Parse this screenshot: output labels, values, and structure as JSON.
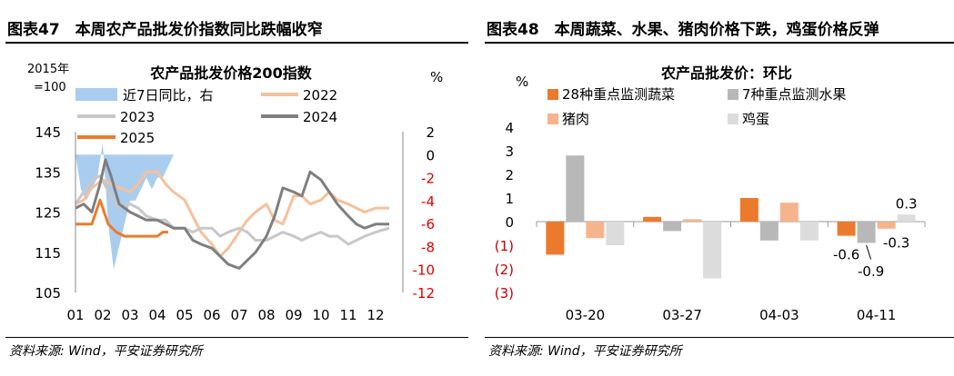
{
  "left": {
    "header": "图表47　本周农产品批发价指数同比跌幅收窄",
    "footer": "资料来源: Wind，平安证券研究所",
    "chart_data": {
      "type": "line",
      "title": "农产品批发价格200指数",
      "ylabel_left": "2015年=100",
      "ylabel_left_line1": "2015年",
      "ylabel_left_line2": "=100",
      "ylabel_right": "%",
      "x_ticks": [
        "01",
        "02",
        "03",
        "04",
        "05",
        "06",
        "07",
        "08",
        "09",
        "10",
        "11",
        "12"
      ],
      "y_left_ticks": [
        "105",
        "115",
        "125",
        "135",
        "145"
      ],
      "y_left_range": [
        105,
        145
      ],
      "y_right_ticks": [
        "2",
        "0",
        "-2",
        "-4",
        "-6",
        "-8",
        "-10",
        "-12"
      ],
      "y_right_range": [
        -12,
        2
      ],
      "legend": {
        "area": "近7日同比，右",
        "s2022": "2022",
        "s2023": "2023",
        "s2024": "2024",
        "s2025": "2025"
      },
      "colors": {
        "area": "#a9cdef",
        "s2022": "#f6c09a",
        "s2023": "#c8c8c8",
        "s2024": "#7f7f7f",
        "s2025": "#ec7a2c",
        "right_ticks": "#e00000"
      },
      "series": [
        {
          "name": "2022",
          "x": [
            1,
            1.3,
            1.6,
            2,
            2.3,
            2.6,
            3,
            3.3,
            3.6,
            4,
            4.3,
            4.6,
            5,
            5.3,
            5.6,
            6,
            6.3,
            6.6,
            7,
            7.3,
            7.6,
            8,
            8.3,
            8.6,
            9,
            9.3,
            9.6,
            10,
            10.3,
            10.6,
            11,
            11.3,
            11.6,
            12,
            12.5
          ],
          "values": [
            127,
            128,
            131,
            133,
            132,
            131,
            130,
            132,
            135,
            135,
            132,
            130,
            128,
            124,
            120,
            117,
            114,
            116,
            120,
            123,
            125,
            127,
            123,
            122,
            129,
            129,
            127,
            128,
            130,
            128,
            127,
            126,
            125,
            126,
            126
          ]
        },
        {
          "name": "2023",
          "x": [
            1,
            1.3,
            1.6,
            1.9,
            2.3,
            2.6,
            3,
            3.3,
            3.6,
            4,
            4.3,
            4.6,
            5,
            5.3,
            5.6,
            6,
            6.3,
            6.6,
            7,
            7.3,
            7.6,
            8,
            8.3,
            8.6,
            9,
            9.3,
            9.6,
            10,
            10.3,
            10.6,
            11,
            11.3,
            11.6,
            12,
            12.5
          ],
          "values": [
            127,
            130,
            133,
            134,
            129,
            126,
            127,
            126,
            124,
            123,
            123,
            121,
            121,
            120,
            121,
            121,
            119,
            120,
            121,
            120,
            118,
            118,
            119,
            120,
            119,
            118,
            119,
            120,
            119,
            119,
            117,
            118,
            119,
            120,
            121
          ]
        },
        {
          "name": "2024",
          "x": [
            1,
            1.3,
            1.6,
            1.9,
            2.1,
            2.3,
            2.6,
            3,
            3.3,
            3.6,
            4,
            4.3,
            4.6,
            5,
            5.3,
            5.6,
            6,
            6.3,
            6.6,
            7,
            7.3,
            7.6,
            8,
            8.3,
            8.6,
            9,
            9.3,
            9.6,
            10,
            10.3,
            10.6,
            11,
            11.3,
            11.6,
            12,
            12.5
          ],
          "values": [
            126,
            127,
            125,
            132,
            138,
            134,
            127,
            125,
            124,
            123,
            123,
            122,
            121,
            121,
            118,
            117,
            116,
            114,
            112,
            111,
            113,
            115,
            119,
            124,
            131,
            130,
            129,
            135,
            133,
            130,
            127,
            124,
            122,
            121,
            122,
            122
          ]
        },
        {
          "name": "2025",
          "x": [
            1,
            1.3,
            1.6,
            1.9,
            2.2,
            2.5,
            2.8,
            3,
            3.3,
            3.6,
            4,
            4.2,
            4.4
          ],
          "values": [
            122,
            122,
            122,
            128,
            122,
            120,
            119,
            119,
            119,
            119,
            119,
            120,
            120
          ]
        },
        {
          "name": "近7日同比，右",
          "type": "area",
          "x": [
            1,
            1.2,
            1.4,
            1.6,
            1.8,
            2,
            2.2,
            2.4,
            2.6,
            2.8,
            3,
            3.2,
            3.4,
            3.6,
            3.8,
            4,
            4.2,
            4.4,
            4.6
          ],
          "values": [
            0,
            -3,
            -4,
            -3,
            -2,
            1,
            -6,
            -10,
            -8,
            -6,
            -4,
            -4,
            -3,
            -2,
            -3,
            -2,
            -2,
            -1,
            0
          ]
        }
      ]
    }
  },
  "right": {
    "header": "图表48　本周蔬菜、水果、猪肉价格下跌，鸡蛋价格反弹",
    "footer": "资料来源: Wind，平安证券研究所",
    "chart_data": {
      "type": "bar",
      "title": "农产品批发价：环比",
      "ylabel": "%",
      "categories": [
        "03-20",
        "03-27",
        "04-03",
        "04-11"
      ],
      "y_ticks": [
        "4",
        "3",
        "2",
        "1",
        "0",
        "(1)",
        "(2)",
        "(3)"
      ],
      "ylim": [
        -3,
        4
      ],
      "legend": [
        "28种重点监测蔬菜",
        "7种重点监测水果",
        "猪肉",
        "鸡蛋"
      ],
      "colors": [
        "#ec7a2c",
        "#b8b8b8",
        "#f6b48c",
        "#dcdcdc"
      ],
      "series": [
        {
          "name": "28种重点监测蔬菜",
          "values": [
            -1.4,
            0.2,
            1.0,
            -0.6
          ]
        },
        {
          "name": "7种重点监测水果",
          "values": [
            2.8,
            -0.4,
            -0.8,
            -0.9
          ]
        },
        {
          "name": "猪肉",
          "values": [
            -0.7,
            0.1,
            0.8,
            -0.3
          ]
        },
        {
          "name": "鸡蛋",
          "values": [
            -1.0,
            -2.4,
            -0.8,
            0.3
          ]
        }
      ],
      "data_labels": [
        {
          "series": 0,
          "category": 3,
          "text": "-0.6"
        },
        {
          "series": 1,
          "category": 3,
          "text": "-0.9"
        },
        {
          "series": 2,
          "category": 3,
          "text": "-0.3"
        },
        {
          "series": 3,
          "category": 3,
          "text": "0.3"
        }
      ]
    }
  }
}
